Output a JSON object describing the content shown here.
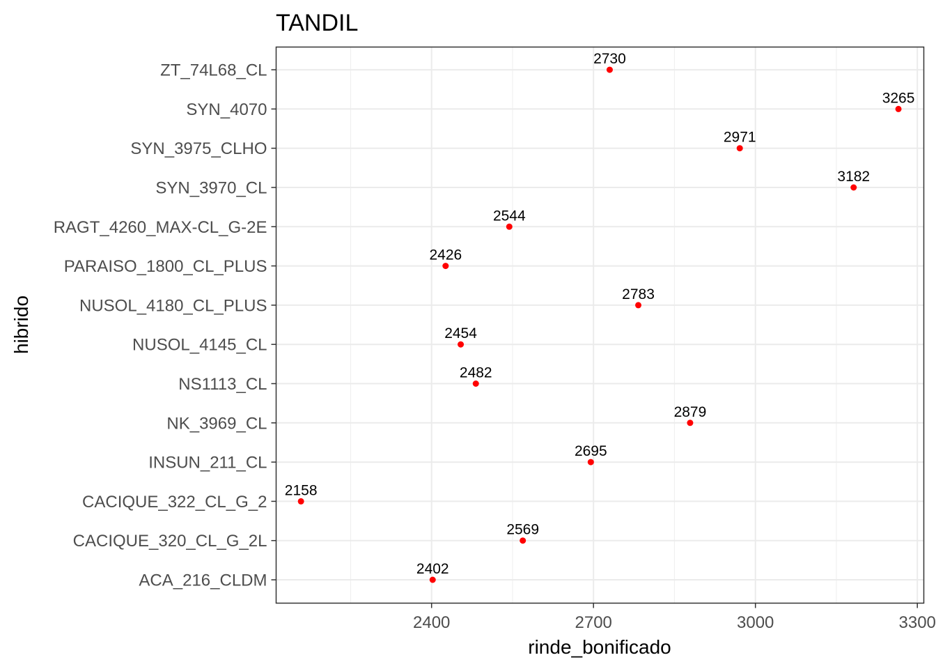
{
  "chart_data": {
    "type": "scatter",
    "title": "TANDIL",
    "xlabel": "rinde_bonificado",
    "ylabel": "hibrido",
    "xlim": [
      2112,
      3312
    ],
    "x_ticks": [
      2400,
      2700,
      3000,
      3300
    ],
    "x_minor_ticks": [
      2250,
      2550,
      2850,
      3150
    ],
    "grid": true,
    "point_color": "#ff0000",
    "categories": [
      "ACA_216_CLDM",
      "CACIQUE_320_CL_G_2L",
      "CACIQUE_322_CL_G_2",
      "INSUN_211_CL",
      "NK_3969_CL",
      "NS1113_CL",
      "NUSOL_4145_CL",
      "NUSOL_4180_CL_PLUS",
      "PARAISO_1800_CL_PLUS",
      "RAGT_4260_MAX-CL_G-2E",
      "SYN_3970_CL",
      "SYN_3975_CLHO",
      "SYN_4070",
      "ZT_74L68_CL"
    ],
    "values": [
      2402,
      2569,
      2158,
      2695,
      2879,
      2482,
      2454,
      2783,
      2426,
      2544,
      3182,
      2971,
      3265,
      2730
    ],
    "labels": [
      "2402",
      "2569",
      "2158",
      "2695",
      "2879",
      "2482",
      "2454",
      "2783",
      "2426",
      "2544",
      "3182",
      "2971",
      "3265",
      "2730"
    ]
  }
}
